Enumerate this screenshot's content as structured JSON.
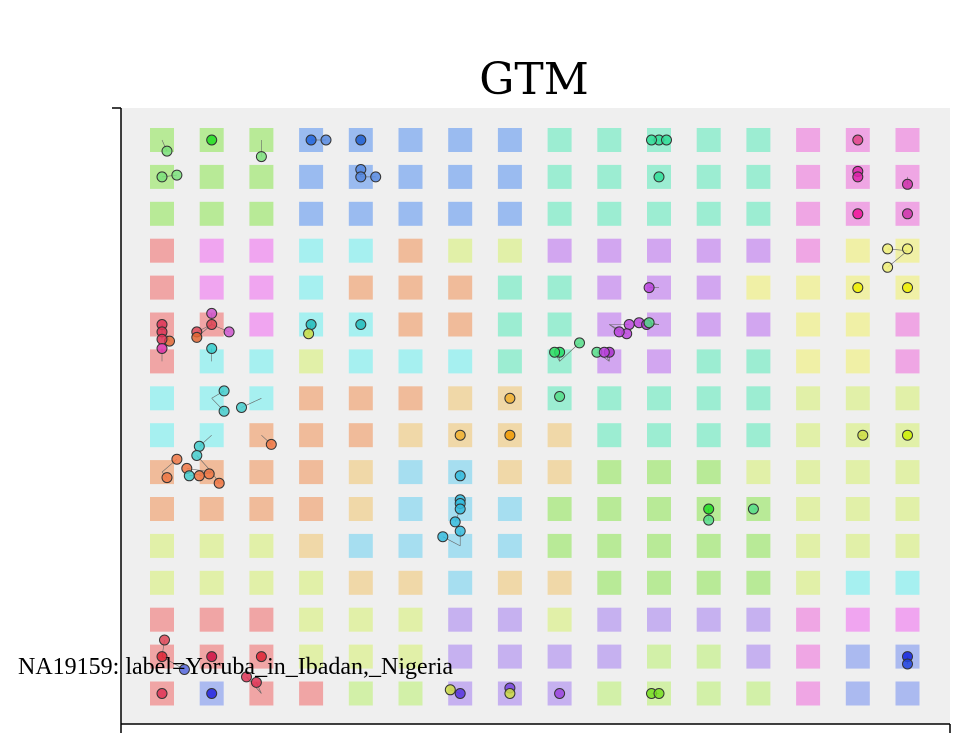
{
  "chart_data": {
    "type": "scatter",
    "title": "GTM",
    "grid_cols": 16,
    "grid_rows": 16,
    "cell_colors_by_row": [
      [
        "#a6e87a",
        "#a6e87a",
        "#a6e87a",
        "#7eaaf0",
        "#7eaaf0",
        "#7eaaf0",
        "#7eaaf0",
        "#7eaaf0",
        "#80ecc8",
        "#80ecc8",
        "#80ecc8",
        "#80ecc8",
        "#80ecc8",
        "#ef8ee0",
        "#ef8ee0",
        "#ef8ee0"
      ],
      [
        "#a6e87a",
        "#a6e87a",
        "#a6e87a",
        "#7eaaf0",
        "#7eaaf0",
        "#7eaaf0",
        "#7eaaf0",
        "#7eaaf0",
        "#80ecc8",
        "#80ecc8",
        "#80ecc8",
        "#80ecc8",
        "#80ecc8",
        "#ef8ee0",
        "#ef8ee0",
        "#ef8ee0"
      ],
      [
        "#a6e87a",
        "#a6e87a",
        "#a6e87a",
        "#7eaaf0",
        "#7eaaf0",
        "#7eaaf0",
        "#7eaaf0",
        "#7eaaf0",
        "#80ecc8",
        "#80ecc8",
        "#80ecc8",
        "#80ecc8",
        "#80ecc8",
        "#ef8ee0",
        "#ef8ee0",
        "#ef8ee0"
      ],
      [
        "#f08c8c",
        "#f08cf0",
        "#f08cf0",
        "#8ef0f0",
        "#8ef0f0",
        "#f0aa7e",
        "#dcf090",
        "#dcf090",
        "#c88ef0",
        "#c88ef0",
        "#c88ef0",
        "#c88ef0",
        "#c88ef0",
        "#ef8ee0",
        "#f0f08e",
        "#f0f08e"
      ],
      [
        "#f08c8c",
        "#f08cf0",
        "#f08cf0",
        "#8ef0f0",
        "#f0aa7e",
        "#f0aa7e",
        "#f0aa7e",
        "#80ecc8",
        "#80ecc8",
        "#c88ef0",
        "#c88ef0",
        "#c88ef0",
        "#f0f08e",
        "#f0f08e",
        "#f0f08e",
        "#f0f08e"
      ],
      [
        "#f08c8c",
        "#f08c8c",
        "#f08cf0",
        "#8ef0f0",
        "#8ef0f0",
        "#f0aa7e",
        "#f0aa7e",
        "#80ecc8",
        "#80ecc8",
        "#c88ef0",
        "#c88ef0",
        "#c88ef0",
        "#c88ef0",
        "#f0f08e",
        "#f0f08e",
        "#ef8ee0"
      ],
      [
        "#f08c8c",
        "#8ef0f0",
        "#8ef0f0",
        "#dcf090",
        "#8ef0f0",
        "#8ef0f0",
        "#8ef0f0",
        "#80ecc8",
        "#80ecc8",
        "#c88ef0",
        "#c88ef0",
        "#80ecc8",
        "#80ecc8",
        "#f0f08e",
        "#f0f08e",
        "#ef8ee0"
      ],
      [
        "#8ef0f0",
        "#8ef0f0",
        "#8ef0f0",
        "#f0aa7e",
        "#f0aa7e",
        "#f0aa7e",
        "#f0d090",
        "#f0d090",
        "#80ecc8",
        "#80ecc8",
        "#80ecc8",
        "#80ecc8",
        "#80ecc8",
        "#dcf090",
        "#dcf090",
        "#dcf090"
      ],
      [
        "#8ef0f0",
        "#8ef0f0",
        "#f0aa7e",
        "#f0aa7e",
        "#f0aa7e",
        "#f0d090",
        "#f0d090",
        "#f0d090",
        "#f0d090",
        "#80ecc8",
        "#80ecc8",
        "#80ecc8",
        "#80ecc8",
        "#dcf090",
        "#dcf090",
        "#dcf090"
      ],
      [
        "#f0aa7e",
        "#f0aa7e",
        "#f0aa7e",
        "#f0aa7e",
        "#f0d090",
        "#8ed8f0",
        "#8ed8f0",
        "#f0d090",
        "#f0d090",
        "#a6e87a",
        "#a6e87a",
        "#a6e87a",
        "#dcf090",
        "#dcf090",
        "#dcf090",
        "#dcf090"
      ],
      [
        "#f0aa7e",
        "#f0aa7e",
        "#f0aa7e",
        "#f0aa7e",
        "#f0d090",
        "#8ed8f0",
        "#8ed8f0",
        "#8ed8f0",
        "#a6e87a",
        "#a6e87a",
        "#a6e87a",
        "#a6e87a",
        "#a6e87a",
        "#dcf090",
        "#dcf090",
        "#dcf090"
      ],
      [
        "#dcf090",
        "#dcf090",
        "#dcf090",
        "#f0d090",
        "#8ed8f0",
        "#8ed8f0",
        "#8ed8f0",
        "#8ed8f0",
        "#a6e87a",
        "#a6e87a",
        "#a6e87a",
        "#a6e87a",
        "#a6e87a",
        "#dcf090",
        "#dcf090",
        "#dcf090"
      ],
      [
        "#dcf090",
        "#dcf090",
        "#dcf090",
        "#dcf090",
        "#f0d090",
        "#f0d090",
        "#8ed8f0",
        "#f0d090",
        "#f0d090",
        "#a6e87a",
        "#a6e87a",
        "#a6e87a",
        "#a6e87a",
        "#dcf090",
        "#8ef0f0",
        "#8ef0f0"
      ],
      [
        "#f08c8c",
        "#f08c8c",
        "#f08c8c",
        "#dcf090",
        "#dcf090",
        "#dcf090",
        "#b89cf0",
        "#b89cf0",
        "#dcf090",
        "#b89cf0",
        "#b89cf0",
        "#b89cf0",
        "#b89cf0",
        "#ef8ee0",
        "#f08cf0",
        "#f08cf0"
      ],
      [
        "#f08c8c",
        "#f08c8c",
        "#f08c8c",
        "#dcf090",
        "#dcf090",
        "#dcf090",
        "#b89cf0",
        "#b89cf0",
        "#b89cf0",
        "#b89cf0",
        "#c8f090",
        "#c8f090",
        "#b89cf0",
        "#ef8ee0",
        "#94a8f0",
        "#94a8f0"
      ],
      [
        "#f08c8c",
        "#94a8f0",
        "#f08c8c",
        "#f08c8c",
        "#c8f090",
        "#c8f090",
        "#b89cf0",
        "#b89cf0",
        "#b89cf0",
        "#c8f090",
        "#c8f090",
        "#c8f090",
        "#c8f090",
        "#ef8ee0",
        "#94a8f0",
        "#94a8f0"
      ]
    ],
    "points": [
      {
        "col": 0.1,
        "row": 0.3,
        "color": "#7ae07a"
      },
      {
        "col": 1,
        "row": 0,
        "color": "#22dd22"
      },
      {
        "col": 2,
        "row": 0.45,
        "color": "#7ae07a"
      },
      {
        "col": 3,
        "row": 0,
        "color": "#2266dd"
      },
      {
        "col": 3.3,
        "row": 0,
        "color": "#5588e0"
      },
      {
        "col": 4,
        "row": 0,
        "color": "#1f5fd0"
      },
      {
        "col": 0,
        "row": 1,
        "color": "#7ae07a"
      },
      {
        "col": 0.3,
        "row": 0.95,
        "color": "#7ae07a"
      },
      {
        "col": 4,
        "row": 0.8,
        "color": "#5588e0"
      },
      {
        "col": 4,
        "row": 1,
        "color": "#5588e0"
      },
      {
        "col": 4.3,
        "row": 1,
        "color": "#5588e0"
      },
      {
        "col": 10,
        "row": 0,
        "color": "#33dd99"
      },
      {
        "col": 10.15,
        "row": 0,
        "color": "#33dd99"
      },
      {
        "col": 9.85,
        "row": 0,
        "color": "#33dd99"
      },
      {
        "col": 10,
        "row": 1,
        "color": "#33dd99"
      },
      {
        "col": 14,
        "row": 0,
        "color": "#e04488"
      },
      {
        "col": 14,
        "row": 0.85,
        "color": "#dd22aa"
      },
      {
        "col": 14,
        "row": 1,
        "color": "#dd22aa"
      },
      {
        "col": 15,
        "row": 1.2,
        "color": "#cc33aa"
      },
      {
        "col": 14,
        "row": 2,
        "color": "#ee1199"
      },
      {
        "col": 15,
        "row": 2,
        "color": "#cc33aa"
      },
      {
        "col": 14.6,
        "row": 2.95,
        "color": "#eeee77"
      },
      {
        "col": 15,
        "row": 2.95,
        "color": "#eeee77"
      },
      {
        "col": 14.6,
        "row": 3.45,
        "color": "#eeee77"
      },
      {
        "col": 14,
        "row": 4,
        "color": "#eeee00"
      },
      {
        "col": 15,
        "row": 4,
        "color": "#eeee00"
      },
      {
        "col": 9.8,
        "row": 4,
        "color": "#bb44dd"
      },
      {
        "col": 1,
        "row": 4.7,
        "color": "#cc55cc"
      },
      {
        "col": 1.35,
        "row": 5.2,
        "color": "#cc55cc"
      },
      {
        "col": 1,
        "row": 5,
        "color": "#dd4455"
      },
      {
        "col": 0.7,
        "row": 5.2,
        "color": "#dd4455"
      },
      {
        "col": 0.7,
        "row": 5.35,
        "color": "#e06633"
      },
      {
        "col": 0.15,
        "row": 5.45,
        "color": "#e06633"
      },
      {
        "col": 0,
        "row": 5,
        "color": "#dd3355"
      },
      {
        "col": 0,
        "row": 5.2,
        "color": "#dd3355"
      },
      {
        "col": 0,
        "row": 5.4,
        "color": "#dd3355"
      },
      {
        "col": 0,
        "row": 5.65,
        "color": "#dd33aa"
      },
      {
        "col": 1,
        "row": 5.65,
        "color": "#33cccc"
      },
      {
        "col": 3,
        "row": 5,
        "color": "#22bbbb"
      },
      {
        "col": 2.95,
        "row": 5.25,
        "color": "#ccdd44"
      },
      {
        "col": 4,
        "row": 5,
        "color": "#22bbbb"
      },
      {
        "col": 8,
        "row": 5.75,
        "color": "#22dd66"
      },
      {
        "col": 8.4,
        "row": 5.5,
        "color": "#55dd88"
      },
      {
        "col": 7.9,
        "row": 5.75,
        "color": "#33dd66"
      },
      {
        "col": 8.75,
        "row": 5.75,
        "color": "#55dd88"
      },
      {
        "col": 9,
        "row": 5.75,
        "color": "#aa33cc"
      },
      {
        "col": 8.9,
        "row": 5.75,
        "color": "#bb44dd"
      },
      {
        "col": 9.4,
        "row": 5,
        "color": "#bb44dd"
      },
      {
        "col": 9.35,
        "row": 5.25,
        "color": "#bb44dd"
      },
      {
        "col": 9.2,
        "row": 5.2,
        "color": "#bb44dd"
      },
      {
        "col": 9.6,
        "row": 4.95,
        "color": "#bb44dd"
      },
      {
        "col": 9.75,
        "row": 5,
        "color": "#aa33cc"
      },
      {
        "col": 9.8,
        "row": 4.95,
        "color": "#55dd88"
      },
      {
        "col": 8,
        "row": 6.95,
        "color": "#55dd88"
      },
      {
        "col": 7,
        "row": 7,
        "color": "#f0b030"
      },
      {
        "col": 6,
        "row": 8,
        "color": "#f0b030"
      },
      {
        "col": 7,
        "row": 8,
        "color": "#ee9900"
      },
      {
        "col": 14.1,
        "row": 8,
        "color": "#ccdd44"
      },
      {
        "col": 15,
        "row": 8,
        "color": "#ccee00"
      },
      {
        "col": 1.25,
        "row": 6.8,
        "color": "#44cccc"
      },
      {
        "col": 1.25,
        "row": 7.35,
        "color": "#44cccc"
      },
      {
        "col": 1.6,
        "row": 7.25,
        "color": "#44cccc"
      },
      {
        "col": 0.75,
        "row": 8.3,
        "color": "#44cccc"
      },
      {
        "col": 2.2,
        "row": 8.25,
        "color": "#ee7744"
      },
      {
        "col": 0.7,
        "row": 8.55,
        "color": "#44cccc"
      },
      {
        "col": 0.3,
        "row": 8.65,
        "color": "#ee7744"
      },
      {
        "col": 0.5,
        "row": 8.9,
        "color": "#ee7744"
      },
      {
        "col": 0.1,
        "row": 9.15,
        "color": "#ee7744"
      },
      {
        "col": 0.55,
        "row": 9.1,
        "color": "#44cccc"
      },
      {
        "col": 0.75,
        "row": 9.1,
        "color": "#ee7744"
      },
      {
        "col": 0.95,
        "row": 9.05,
        "color": "#ee7744"
      },
      {
        "col": 1.15,
        "row": 9.3,
        "color": "#ee7744"
      },
      {
        "col": 6,
        "row": 9.1,
        "color": "#33bbdd"
      },
      {
        "col": 6,
        "row": 9.75,
        "color": "#33bbdd"
      },
      {
        "col": 6,
        "row": 9.85,
        "color": "#33bbdd"
      },
      {
        "col": 6,
        "row": 10,
        "color": "#33bbdd"
      },
      {
        "col": 5.9,
        "row": 10.35,
        "color": "#33bbdd"
      },
      {
        "col": 6,
        "row": 10.6,
        "color": "#33bbdd"
      },
      {
        "col": 5.65,
        "row": 10.75,
        "color": "#33bbdd"
      },
      {
        "col": 11,
        "row": 10,
        "color": "#22dd22"
      },
      {
        "col": 11,
        "row": 10.3,
        "color": "#55dd88"
      },
      {
        "col": 11.9,
        "row": 10,
        "color": "#55dd88"
      },
      {
        "col": 0.05,
        "row": 13.55,
        "color": "#dd4455"
      },
      {
        "col": 0,
        "row": 14,
        "color": "#dd2233"
      },
      {
        "col": 0.45,
        "row": 14.35,
        "color": "#5566dd"
      },
      {
        "col": 1,
        "row": 14,
        "color": "#cc1144"
      },
      {
        "col": 2,
        "row": 14,
        "color": "#dd2233"
      },
      {
        "col": 1.7,
        "row": 14.55,
        "color": "#dd3355"
      },
      {
        "col": 1.9,
        "row": 14.7,
        "color": "#dd3355"
      },
      {
        "col": 0,
        "row": 15,
        "color": "#dd3355"
      },
      {
        "col": 1,
        "row": 15,
        "color": "#2222dd"
      },
      {
        "col": 5.8,
        "row": 14.9,
        "color": "#ccdd44"
      },
      {
        "col": 6,
        "row": 15,
        "color": "#5533dd"
      },
      {
        "col": 7,
        "row": 14.85,
        "color": "#7744dd"
      },
      {
        "col": 7,
        "row": 15,
        "color": "#ccdd44"
      },
      {
        "col": 8,
        "row": 15,
        "color": "#9944dd"
      },
      {
        "col": 9.85,
        "row": 15,
        "color": "#77dd22"
      },
      {
        "col": 10,
        "row": 15,
        "color": "#77dd22"
      },
      {
        "col": 15,
        "row": 14,
        "color": "#1122dd"
      },
      {
        "col": 15,
        "row": 14.2,
        "color": "#2244dd"
      }
    ],
    "selected_label": "NA19159: label=Yoruba_in_Ibadan,_Nigeria"
  }
}
